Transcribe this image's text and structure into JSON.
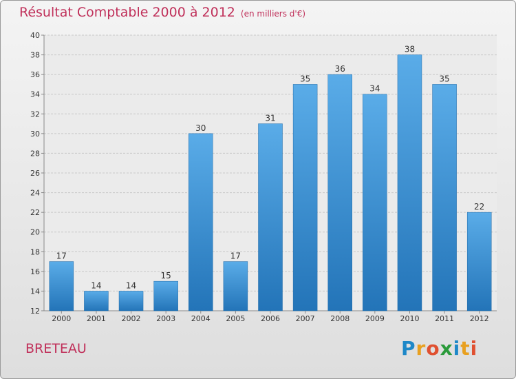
{
  "header": {
    "title": "Résultat Comptable 2000 à 2012",
    "subtitle": "(en milliers d'€)"
  },
  "footer": {
    "place": "BRETEAU",
    "logo_letters": [
      "P",
      "r",
      "o",
      "x",
      "i",
      "t",
      "i"
    ],
    "logo_colors": [
      "#1e88c8",
      "#e8a020",
      "#e05030",
      "#2a9a3a",
      "#1e88c8",
      "#e8a020",
      "#e05030"
    ]
  },
  "colors": {
    "title": "#c0305a",
    "bar_light": "#5aace8",
    "bar_dark": "#2374b8",
    "grid": "#c8c8c8",
    "axis_text": "#333333"
  },
  "chart_data": {
    "type": "bar",
    "categories": [
      "2000",
      "2001",
      "2002",
      "2003",
      "2004",
      "2005",
      "2006",
      "2007",
      "2008",
      "2009",
      "2010",
      "2011",
      "2012"
    ],
    "values": [
      17,
      14,
      14,
      15,
      30,
      17,
      31,
      35,
      36,
      34,
      38,
      35,
      22
    ],
    "ylim": [
      12,
      40
    ],
    "yticks": [
      12,
      14,
      16,
      18,
      20,
      22,
      24,
      26,
      28,
      30,
      32,
      34,
      36,
      38,
      40
    ],
    "grid": true,
    "data_labels": true
  }
}
